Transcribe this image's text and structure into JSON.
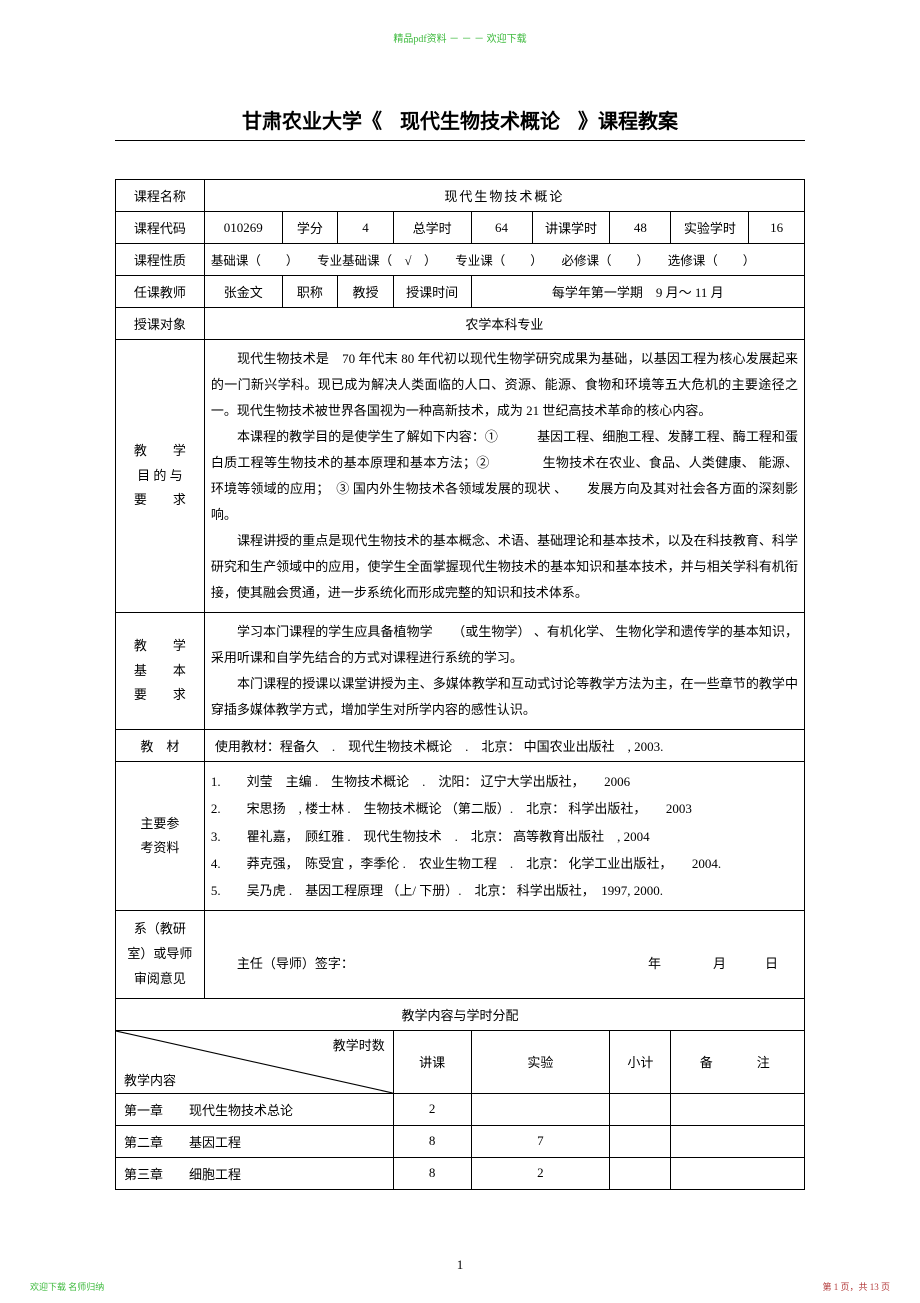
{
  "header_text": "精品pdf资料 － － － 欢迎下载",
  "doc_title_pre": "甘肃农业大学《",
  "doc_title_course": "现代生物技术概论",
  "doc_title_post": "》课程教案",
  "row_course_name_label": "课程名称",
  "course_name_big": "现代生物技术概论",
  "labels": {
    "code": "课程代码",
    "credits": "学分",
    "total_hours": "总学时",
    "lecture_hours": "讲课学时",
    "lab_hours": "实验学时",
    "nature": "课程性质",
    "teacher": "任课教师",
    "title_rank": "职称",
    "teach_time": "授课时间",
    "audience": "授课对象",
    "textbook": "教　材",
    "refs": "主要参\n考资料",
    "dept": "系（教研\n室）或导师\n审阅意见",
    "content_alloc": "教学内容与学时分配",
    "hours_col": "教学时数",
    "content_col": "教学内容",
    "lecture": "讲课",
    "lab": "实验",
    "subtotal": "小计",
    "remark": "备　　注"
  },
  "code": "010269",
  "credits": "4",
  "total_hours": "64",
  "lecture_hours": "48",
  "lab_hours": "16",
  "nature_text": "基础课（　　）　　专业基础课（　√　）　　专业课（　　）　　必修课（　　）　　选修课（　　）",
  "teacher": "张金文",
  "title_rank": "教授",
  "teach_time_value": "每学年第一学期　9 月～ 11 月",
  "audience": "农学本科专业",
  "objectives_label_lines": [
    "教　　学",
    "目 的 与",
    "要　　求"
  ],
  "objectives_text": "　　现代生物技术是　70 年代末 80 年代初以现代生物学研究成果为基础，以基因工程为核心发展起来的一门新兴学科。现已成为解决人类面临的人口、资源、能源、食物和环境等五大危机的主要途径之一。现代生物技术被世界各国视为一种高新技术，成为 21 世纪高技术革命的核心内容。\n　　本课程的教学目的是使学生了解如下内容：①　　　基因工程、细胞工程、发酵工程、酶工程和蛋白质工程等生物技术的基本原理和基本方法；②　　　　生物技术在农业、食品、人类健康、 能源、 环境等领域的应用；　③ 国内外生物技术各领域发展的现状 、　　发展方向及其对社会各方面的深刻影响。\n　　课程讲授的重点是现代生物技术的基本概念、术语、基础理论和基本技术，以及在科技教育、科学研究和生产领域中的应用，使学生全面掌握现代生物技术的基本知识和基本技术，并与相关学科有机衔接，使其融会贯通，进一步系统化而形成完整的知识和技术体系。",
  "basics_label_lines": [
    "教　　学",
    "基　　本",
    "要　　求"
  ],
  "basics_text": "　　学习本门课程的学生应具备植物学　　（或生物学） 、有机化学、 生物化学和遗传学的基本知识，采用听课和自学先结合的方式对课程进行系统的学习。\n　　本门课程的授课以课堂讲授为主、多媒体教学和互动式讨论等教学方法为主，在一些章节的教学中穿插多媒体教学方式，增加学生对所学内容的感性认识。",
  "textbook_text": "使用教材：程备久　.　现代生物技术概论　.　北京： 中国农业出版社　, 2003.",
  "refs": [
    "1.　　刘莹　主编 .　生物技术概论　.　沈阳： 辽宁大学出版社，　　2006",
    "2.　　宋思扬　, 楼士林 .　生物技术概论 （第二版）.　北京： 科学出版社，　　2003",
    "3.　　瞿礼嘉，　顾红雅 .　现代生物技术　.　北京： 高等教育出版社　, 2004",
    "4.　　莽克强，　陈受宜 ，李季伦 .　农业生物工程　.　北京： 化学工业出版社，　　2004.",
    "5.　　吴乃虎 .　基因工程原理 （上/ 下册）.　北京： 科学出版社，　1997, 2000."
  ],
  "signature_line": "主任（导师）签字：",
  "sign_date": "年　　　　月　　　日",
  "chapters": [
    {
      "name": "第一章　　现代生物技术总论",
      "lecture": "2",
      "lab": "",
      "subtotal": "",
      "remark": ""
    },
    {
      "name": "第二章　　基因工程",
      "lecture": "8",
      "lab": "7",
      "subtotal": "",
      "remark": ""
    },
    {
      "name": "第三章　　细胞工程",
      "lecture": "8",
      "lab": "2",
      "subtotal": "",
      "remark": ""
    }
  ],
  "page_number": "1",
  "footer_left": "欢迎下载 名师归纳",
  "footer_right": "第 1 页，共 13 页"
}
